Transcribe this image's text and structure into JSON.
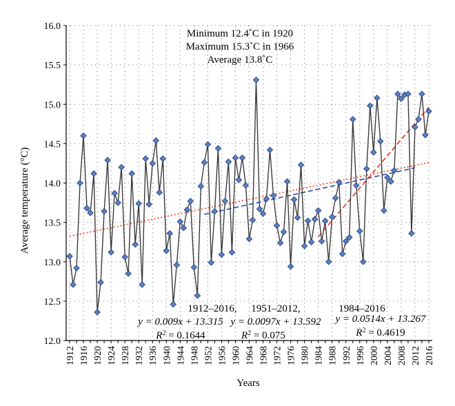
{
  "chart_data": {
    "type": "line",
    "title": "",
    "xlabel": "Years",
    "ylabel": "Average temperature (°C)",
    "xlim": [
      1911,
      2017
    ],
    "ylim": [
      12.0,
      16.0
    ],
    "yticks": [
      "12.0",
      "12.5",
      "13.0",
      "13.5",
      "14.0",
      "14.5",
      "15.0",
      "15.5",
      "16.0"
    ],
    "xticks": [
      "1912",
      "1916",
      "1920",
      "1924",
      "1928",
      "1932",
      "1936",
      "1940",
      "1944",
      "1948",
      "1952",
      "1956",
      "1960",
      "1964",
      "1968",
      "1972",
      "1976",
      "1980",
      "1984",
      "1988",
      "1992",
      "1996",
      "2000",
      "2004",
      "2008",
      "2012",
      "2016"
    ],
    "grid": true,
    "colors": {
      "series_line": "#3a3a3a",
      "marker_fill": "#5b7fc4",
      "marker_stroke": "#1f3d75",
      "trend_1912": "#ff3b1f",
      "trend_1951": "#1f3fa8",
      "trend_1984": "#e0241b",
      "axis": "#000000",
      "grid": "#888888"
    },
    "annotation_lines": [
      "Minimum 12.4˚C in 1920",
      "Maximum 15.3˚C in 1966",
      "Average 13.8˚C"
    ],
    "trend_labels": [
      {
        "period": "1912–2016,",
        "equation": "y = 0.009x + 13.315",
        "r2_label": "R",
        "r2_value": " = 0.1644"
      },
      {
        "period": "1951–2012,",
        "equation": "y = 0.0097x + 13.592",
        "r2_label": "R",
        "r2_value": " = 0.075"
      },
      {
        "period": "1984–2016",
        "equation": "y = 0.0514x + 13.267",
        "r2_label": "R",
        "r2_value": " = 0.4619"
      }
    ],
    "series": [
      {
        "x": [
          1912,
          1913,
          1914,
          1915,
          1916,
          1917,
          1918,
          1919,
          1920,
          1921,
          1922,
          1923,
          1924,
          1925,
          1926,
          1927,
          1928,
          1929,
          1930,
          1931,
          1932,
          1933,
          1934,
          1935,
          1936,
          1937,
          1938,
          1939,
          1940,
          1941,
          1942,
          1943,
          1944,
          1945,
          1946,
          1947,
          1948,
          1949,
          1950,
          1951,
          1952,
          1953,
          1954,
          1955,
          1956,
          1957,
          1958,
          1959,
          1960,
          1961,
          1962,
          1963,
          1964,
          1965,
          1966,
          1967,
          1968,
          1969,
          1970,
          1971,
          1972,
          1973,
          1974,
          1975,
          1976,
          1977,
          1978,
          1979,
          1980,
          1981,
          1982,
          1983,
          1984,
          1985,
          1986,
          1987,
          1988,
          1989,
          1990,
          1991,
          1992,
          1993,
          1994,
          1995,
          1996,
          1997,
          1998,
          1999,
          2000,
          2001,
          2002,
          2003,
          2004,
          2005,
          2006,
          2007,
          2008,
          2009,
          2010,
          2011,
          2012,
          2013,
          2014,
          2015,
          2016
        ],
        "y": [
          13.07,
          12.71,
          12.92,
          14.0,
          14.6,
          13.68,
          13.62,
          14.12,
          12.36,
          12.74,
          13.64,
          14.29,
          13.12,
          13.87,
          13.75,
          14.2,
          13.06,
          12.85,
          14.12,
          13.22,
          13.74,
          12.71,
          14.31,
          13.73,
          14.25,
          14.54,
          13.88,
          14.31,
          13.14,
          13.36,
          12.46,
          12.96,
          13.51,
          13.43,
          13.66,
          13.77,
          12.93,
          12.57,
          13.96,
          14.26,
          14.49,
          12.99,
          13.64,
          14.44,
          13.09,
          13.77,
          14.27,
          13.12,
          14.32,
          14.04,
          14.32,
          13.97,
          13.29,
          13.53,
          15.31,
          13.67,
          13.61,
          13.8,
          14.42,
          13.84,
          13.46,
          13.24,
          13.38,
          14.02,
          12.94,
          13.79,
          13.56,
          14.23,
          13.2,
          13.52,
          13.25,
          13.54,
          13.65,
          13.26,
          13.52,
          13.0,
          13.57,
          13.81,
          14.01,
          13.1,
          13.26,
          13.31,
          14.81,
          13.97,
          13.39,
          13.0,
          14.18,
          14.98,
          14.39,
          15.08,
          14.53,
          13.65,
          14.07,
          14.02,
          14.16,
          15.13,
          15.07,
          15.12,
          15.13,
          13.36,
          14.71,
          14.81,
          15.13,
          14.61,
          14.91
        ]
      }
    ],
    "trendlines": [
      {
        "x_start": 1912,
        "x_end": 2016,
        "y_start": 13.324,
        "y_end": 14.26
      },
      {
        "x_start": 1951,
        "x_end": 2012,
        "y_start": 13.6017,
        "y_end": 14.1934
      },
      {
        "x_start": 1984,
        "x_end": 2016,
        "y_start": 13.3184,
        "y_end": 14.963
      }
    ]
  }
}
